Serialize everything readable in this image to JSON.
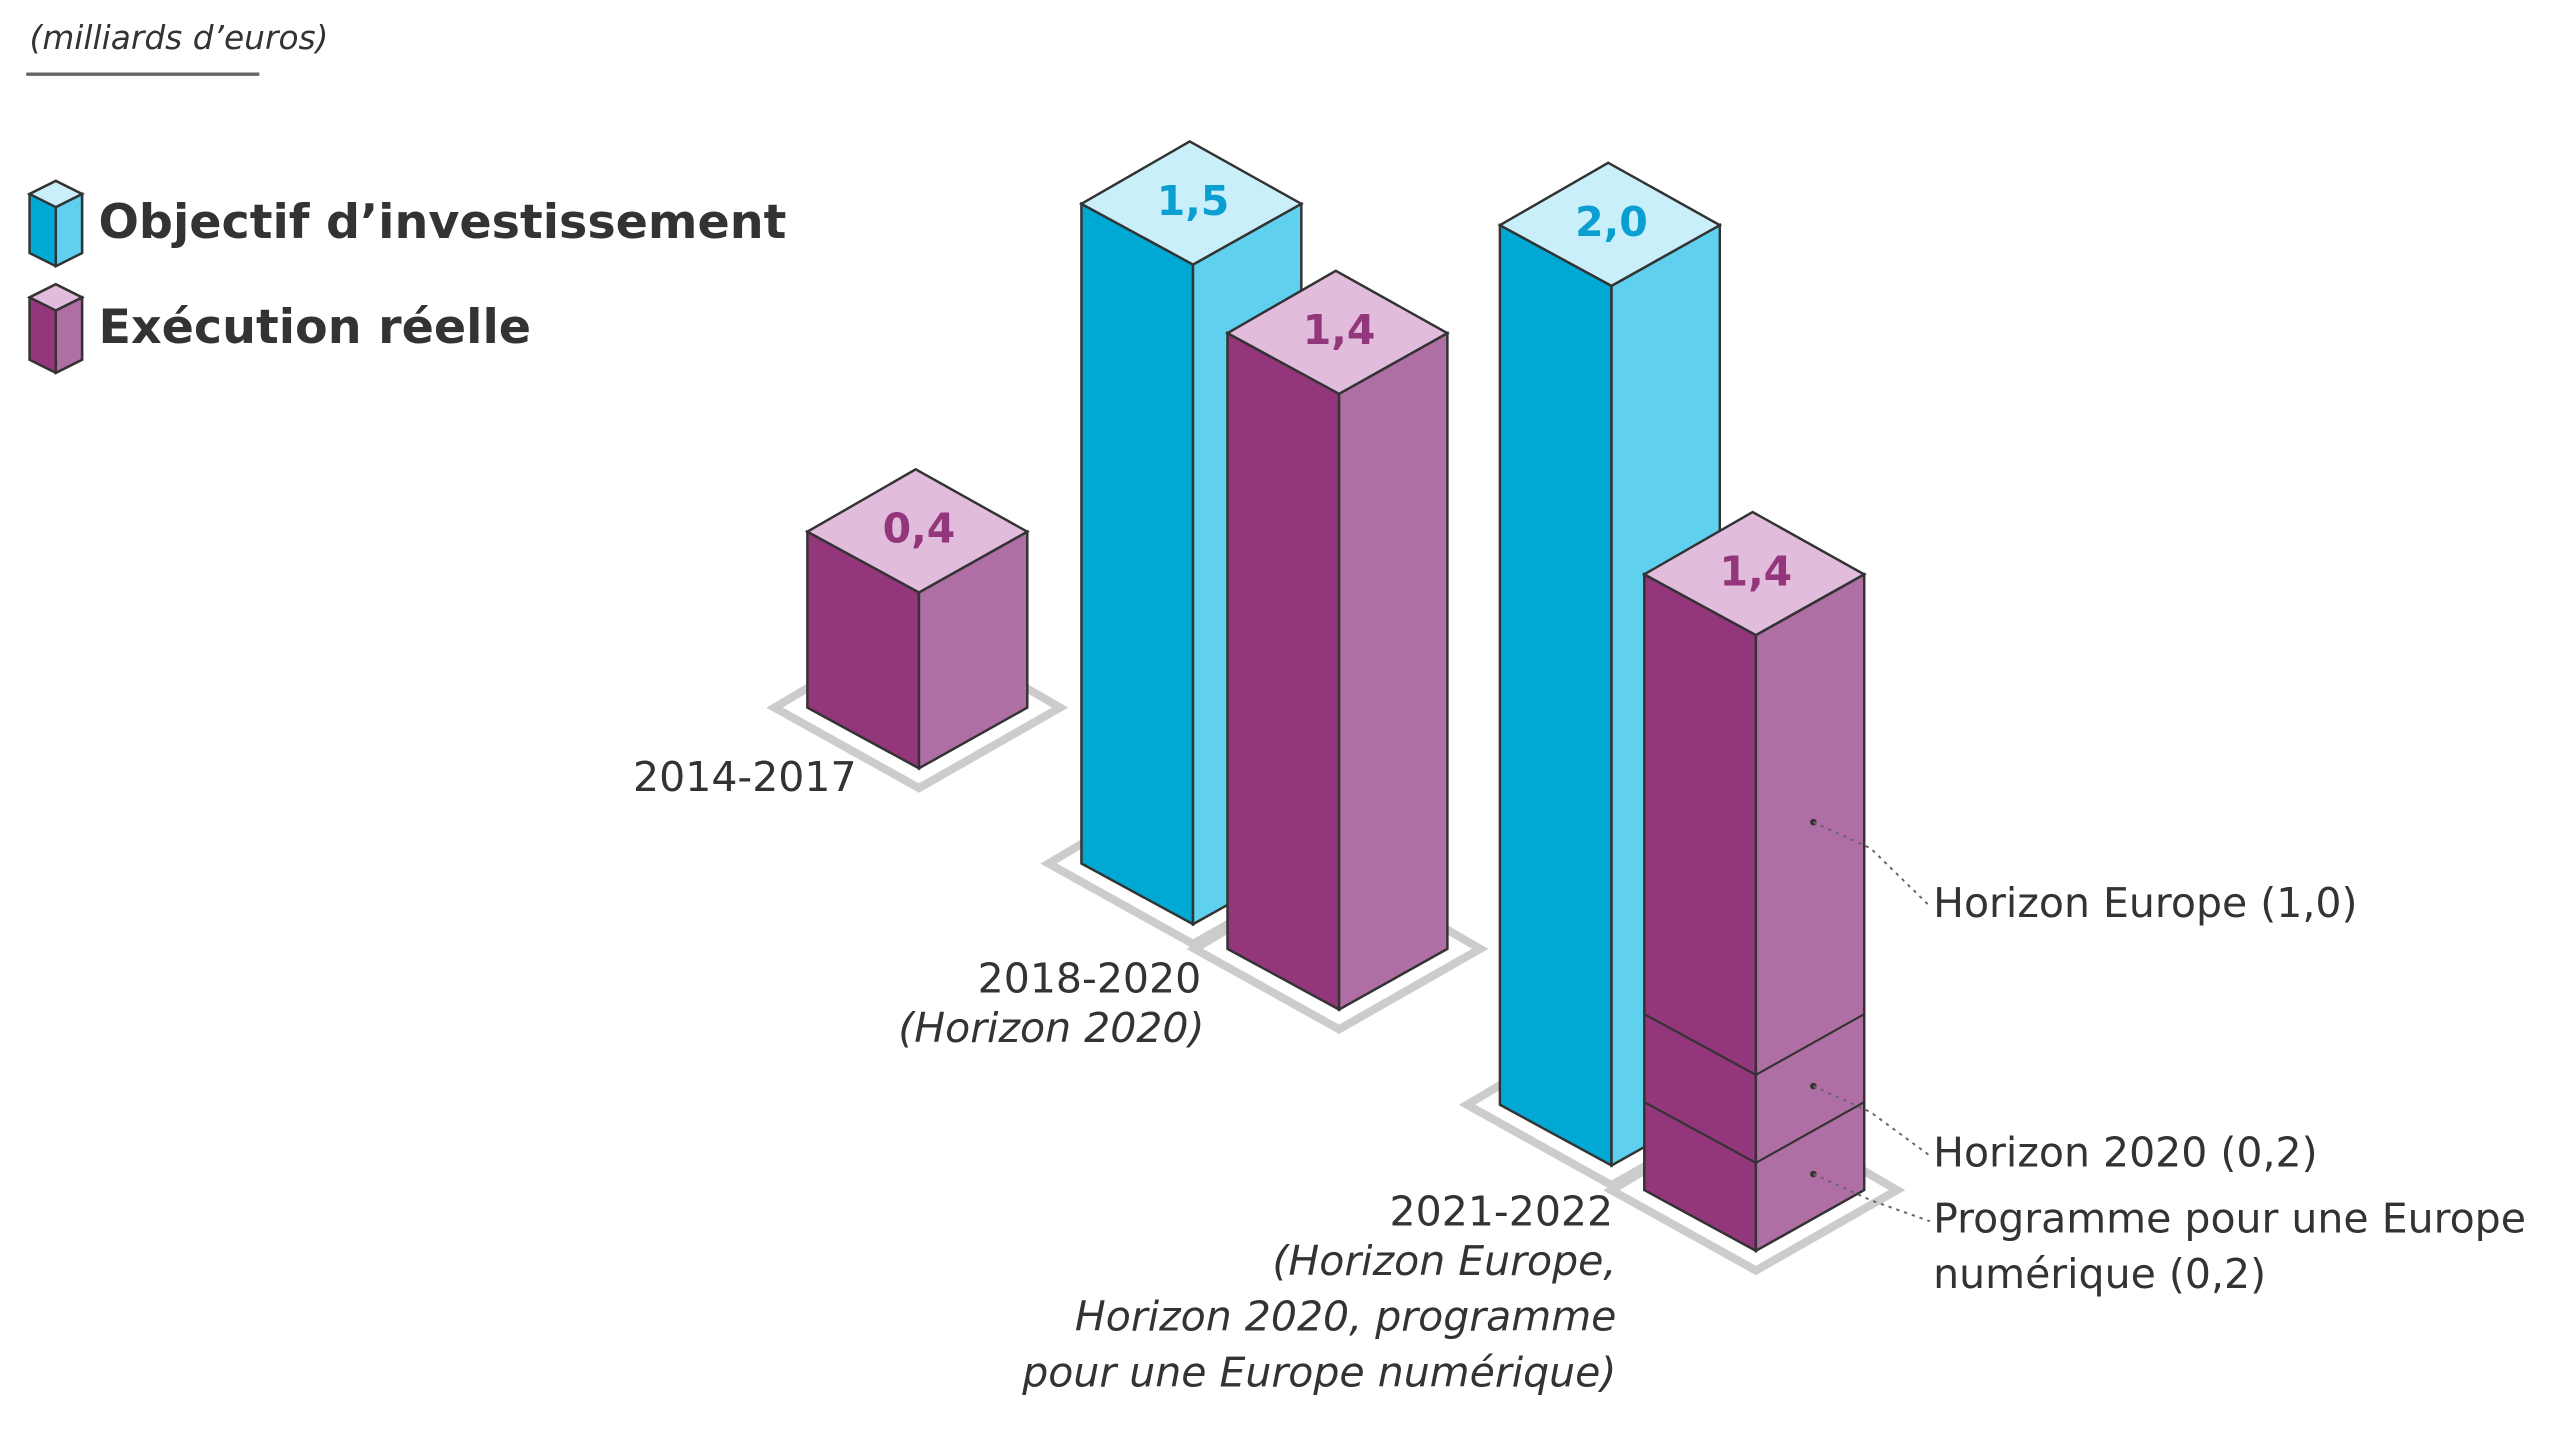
{
  "chart_data": {
    "type": "bar3d",
    "title": "(milliards d’euros)",
    "categories": [
      "2014-2017",
      "2018-2020",
      "2021-2022"
    ],
    "category_notes": [
      null,
      [
        "(Horizon 2020)"
      ],
      [
        "(Horizon Europe,",
        "Horizon 2020, programme",
        "pour une Europe numérique)"
      ]
    ],
    "series": [
      {
        "name": "Objectif d’investissement",
        "color": "#00a9d4",
        "values": [
          null,
          1.5,
          2.0
        ],
        "value_labels": [
          null,
          "1,5",
          "2,0"
        ]
      },
      {
        "name": "Exécution réelle",
        "color": "#93367b",
        "values": [
          0.4,
          1.4,
          1.4
        ],
        "value_labels": [
          "0,4",
          "1,4",
          "1,4"
        ]
      }
    ],
    "breakdown": {
      "labels": [
        [
          "Programme pour une Europe",
          "numérique (0,2)"
        ],
        [
          "Horizon 2020 (0,2)"
        ],
        [
          "Horizon Europe (1,0)"
        ]
      ],
      "values": [
        0.2,
        0.2,
        1.0
      ]
    }
  }
}
